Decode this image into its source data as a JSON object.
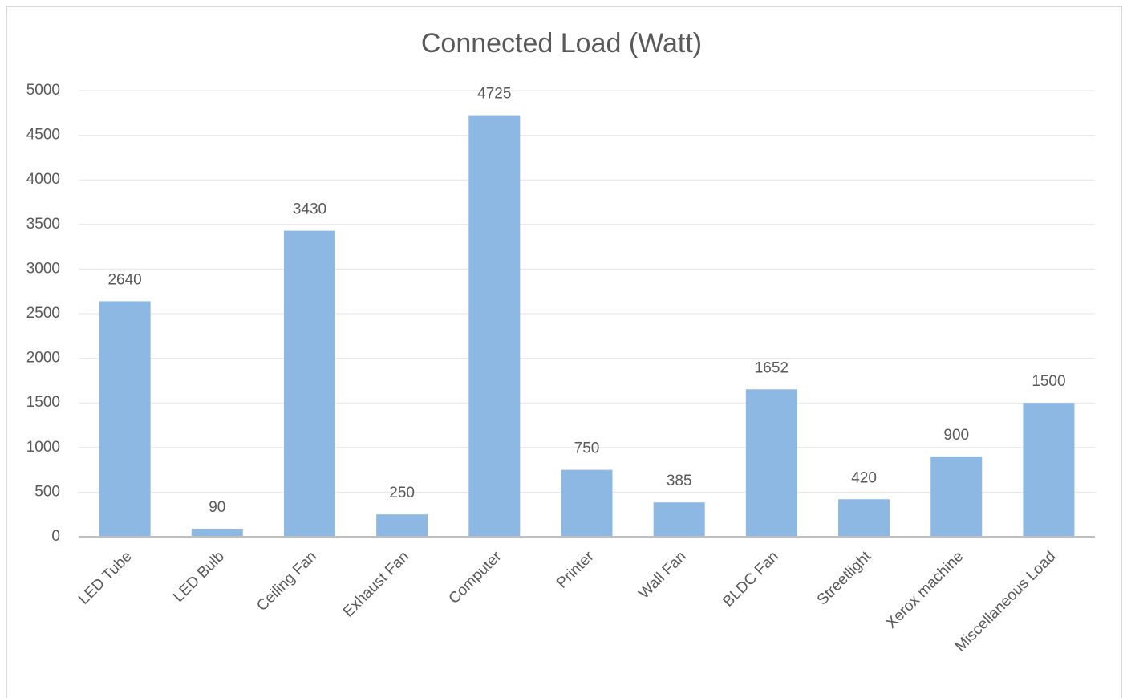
{
  "chart_data": {
    "type": "bar",
    "title": "Connected Load (Watt)",
    "categories": [
      "LED Tube",
      "LED Bulb",
      "Ceiling Fan",
      "Exhaust Fan",
      "Computer",
      "Printer",
      "Wall Fan",
      "BLDC Fan",
      "Streetlight",
      "Xerox machine",
      "Miscellaneous Load"
    ],
    "values": [
      2640,
      90,
      3430,
      250,
      4725,
      750,
      385,
      1652,
      420,
      900,
      1500
    ],
    "color": "#8cb8e3",
    "ylim": [
      0,
      5000
    ],
    "yticks": [
      0,
      500,
      1000,
      1500,
      2000,
      2500,
      3000,
      3500,
      4000,
      4500,
      5000
    ],
    "grid": true
  }
}
